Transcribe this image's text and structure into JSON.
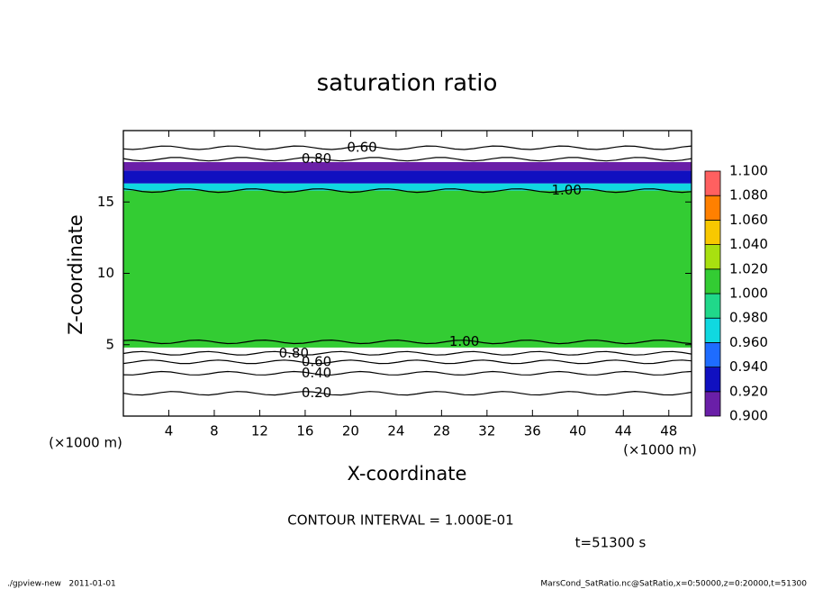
{
  "chart_data": {
    "type": "contour",
    "title": "saturation ratio",
    "x_label": "X-coordinate",
    "y_label": "Z-coordinate",
    "x_unit": "(×1000 m)",
    "y_unit": "(×1000 m)",
    "xlim": [
      0,
      50
    ],
    "ylim": [
      0,
      20
    ],
    "xticks": [
      4,
      8,
      12,
      16,
      20,
      24,
      28,
      32,
      36,
      40,
      44,
      48
    ],
    "yticks": [
      5,
      10,
      15
    ],
    "profile": {
      "z_bins": [
        0,
        1.5,
        3,
        4,
        4.8,
        15.8,
        16.3,
        17.2,
        17.8,
        20
      ],
      "values": [
        0.2,
        0.35,
        0.5,
        0.7,
        1.005,
        0.97,
        0.94,
        0.92,
        0.75
      ]
    },
    "contours": [
      {
        "level": {
          "value": 0.2,
          "label": "0.20"
        },
        "z": 1.6
      },
      {
        "level": {
          "value": 0.4,
          "label": "0.40"
        },
        "z": 3.0
      },
      {
        "level": {
          "value": 0.6,
          "label": "0.60"
        },
        "z": 3.8
      },
      {
        "level": {
          "value": 0.8,
          "label": "0.80"
        },
        "z": 4.4
      },
      {
        "level": {
          "value": 1.0,
          "label": "1.00"
        },
        "z": 5.2
      },
      {
        "level": {
          "value": 1.0,
          "label": "1.00"
        },
        "z": 15.8
      },
      {
        "level": {
          "value": 0.8,
          "label": "0.80"
        },
        "z": 18.0
      },
      {
        "level": {
          "value": 0.6,
          "label": "0.60"
        },
        "z": 18.8
      }
    ],
    "colorbar": {
      "ticks": [
        {
          "value": 0.9,
          "label": "0.900"
        },
        {
          "value": 0.92,
          "label": "0.920"
        },
        {
          "value": 0.94,
          "label": "0.940"
        },
        {
          "value": 0.96,
          "label": "0.960"
        },
        {
          "value": 0.98,
          "label": "0.980"
        },
        {
          "value": 1.0,
          "label": "1.000"
        },
        {
          "value": 1.02,
          "label": "1.020"
        },
        {
          "value": 1.04,
          "label": "1.040"
        },
        {
          "value": 1.06,
          "label": "1.060"
        },
        {
          "value": 1.08,
          "label": "1.080"
        },
        {
          "value": 1.1,
          "label": "1.100"
        }
      ],
      "colors": [
        "#6a1fa8",
        "#1010c0",
        "#1e6cff",
        "#10d8e0",
        "#20d88a",
        "#33cc33",
        "#a8e010",
        "#f8c800",
        "#ff8000",
        "#ff6060"
      ]
    },
    "note": "CONTOUR INTERVAL = 1.000E-01",
    "time_label": "t=51300 s",
    "footer_left": "./gpview-new   2011-01-01",
    "footer_right": "MarsCond_SatRatio.nc@SatRatio,x=0:50000,z=0:20000,t=51300"
  }
}
